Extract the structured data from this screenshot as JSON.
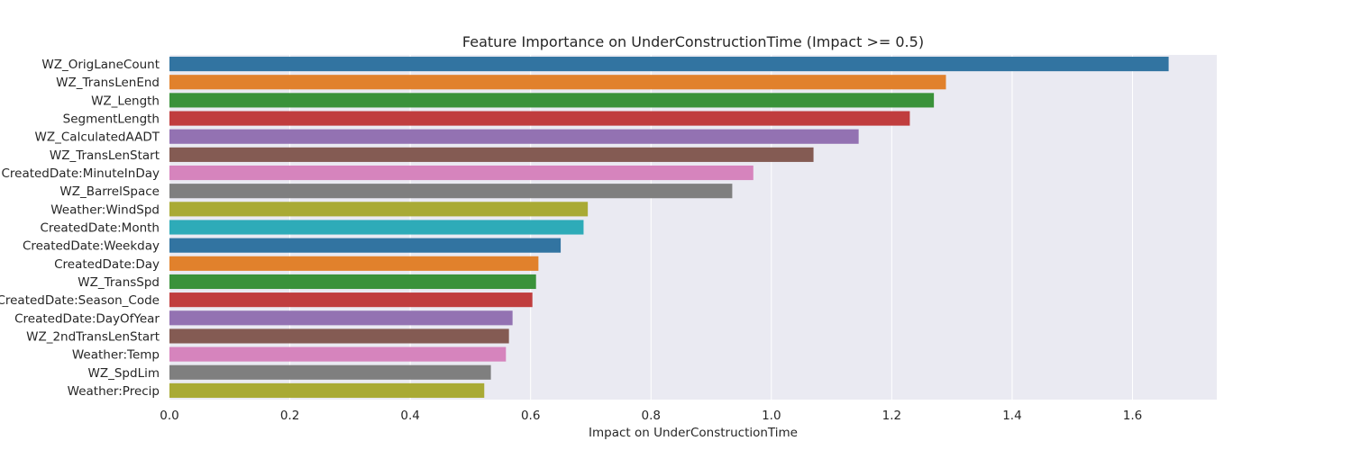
{
  "chart_data": {
    "type": "bar",
    "orientation": "horizontal",
    "title": "Feature Importance on UnderConstructionTime (Impact >= 0.5)",
    "xlabel": "Impact on UnderConstructionTime",
    "ylabel": "",
    "xlim": [
      0,
      1.74
    ],
    "xticks": [
      "0.0",
      "0.2",
      "0.4",
      "0.6",
      "0.8",
      "1.0",
      "1.2",
      "1.4",
      "1.6"
    ],
    "grid": "x",
    "background": "#eaeaf2",
    "categories": [
      "WZ_OrigLaneCount",
      "WZ_TransLenEnd",
      "WZ_Length",
      "SegmentLength",
      "WZ_CalculatedAADT",
      "WZ_TransLenStart",
      "CreatedDate:MinuteInDay",
      "WZ_BarrelSpace",
      "Weather:WindSpd",
      "CreatedDate:Month",
      "CreatedDate:Weekday",
      "CreatedDate:Day",
      "WZ_TransSpd",
      "CreatedDate:Season_Code",
      "CreatedDate:DayOfYear",
      "WZ_2ndTransLenStart",
      "Weather:Temp",
      "WZ_SpdLim",
      "Weather:Precip"
    ],
    "values": [
      1.66,
      1.29,
      1.27,
      1.23,
      1.145,
      1.07,
      0.97,
      0.935,
      0.695,
      0.688,
      0.65,
      0.613,
      0.609,
      0.603,
      0.57,
      0.564,
      0.559,
      0.534,
      0.523
    ],
    "colors": [
      "#3274a1",
      "#e1812c",
      "#3a923a",
      "#c03d3e",
      "#9372b2",
      "#845b53",
      "#d684bd",
      "#7f7f7f",
      "#a9aa35",
      "#2eabb8",
      "#3274a1",
      "#e1812c",
      "#3a923a",
      "#c03d3e",
      "#9372b2",
      "#845b53",
      "#d684bd",
      "#7f7f7f",
      "#a9aa35"
    ]
  }
}
